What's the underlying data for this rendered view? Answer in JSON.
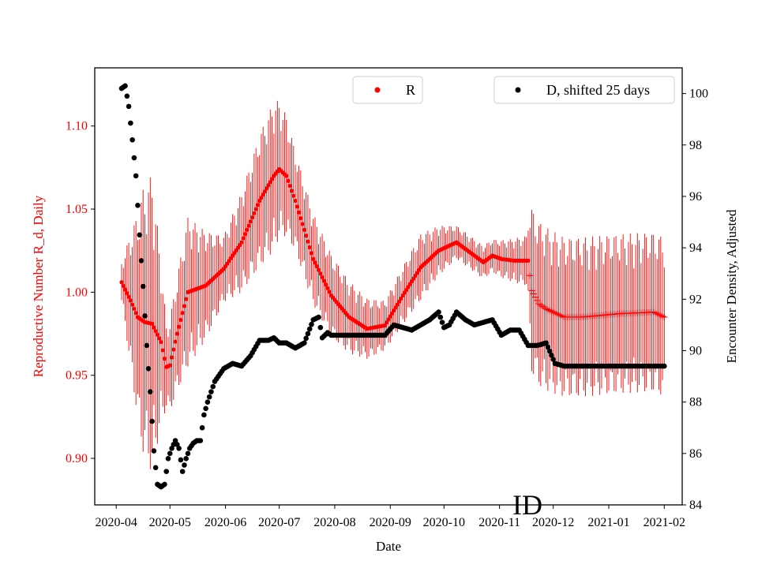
{
  "chart_data": {
    "type": "scatter",
    "xlabel": "Date",
    "ylabel_left": "Reproductive Number R_d, Daily",
    "ylabel_right": "Encounter Density, Adjusted",
    "left_color": "#ff0000",
    "right_color": "#000000",
    "x_ticks": [
      "2020-04",
      "2020-05",
      "2020-06",
      "2020-07",
      "2020-08",
      "2020-09",
      "2020-10",
      "2020-11",
      "2020-12",
      "2021-01",
      "2021-02"
    ],
    "x_tick_days": [
      0,
      30,
      61,
      91,
      122,
      153,
      183,
      214,
      244,
      275,
      306
    ],
    "x_range_days": [
      -12,
      316
    ],
    "y_left": {
      "ticks": [
        0.9,
        0.95,
        1.0,
        1.05,
        1.1
      ],
      "tick_labels": [
        "0.90",
        "0.95",
        "1.00",
        "1.05",
        "1.10"
      ],
      "range": [
        0.872,
        1.135
      ]
    },
    "y_right": {
      "ticks": [
        84,
        86,
        88,
        90,
        92,
        94,
        96,
        98,
        100
      ],
      "tick_labels": [
        "84",
        "86",
        "88",
        "90",
        "92",
        "94",
        "96",
        "98",
        "100"
      ],
      "range": [
        84,
        101
      ]
    },
    "legend": [
      {
        "label": "R",
        "color": "#ff0000",
        "position": "upper-center"
      },
      {
        "label": "D, shifted 25 days",
        "color": "#000000",
        "position": "upper-right"
      }
    ],
    "series_R": {
      "name": "R",
      "color": "#ff0000",
      "estimate_end_day": 230,
      "knots_day": [
        3,
        8,
        12,
        16,
        20,
        25,
        28,
        30,
        34,
        40,
        50,
        60,
        70,
        80,
        88,
        91,
        95,
        100,
        110,
        120,
        130,
        140,
        150,
        160,
        170,
        180,
        190,
        200,
        205,
        210,
        215,
        222,
        230,
        232,
        236,
        240,
        250,
        260,
        280,
        300,
        306
      ],
      "knots_value": [
        1.006,
        0.995,
        0.985,
        0.982,
        0.981,
        0.97,
        0.955,
        0.956,
        0.975,
        1.0,
        1.004,
        1.014,
        1.03,
        1.055,
        1.07,
        1.074,
        1.07,
        1.055,
        1.02,
        0.998,
        0.985,
        0.978,
        0.98,
        0.998,
        1.015,
        1.025,
        1.03,
        1.022,
        1.018,
        1.022,
        1.02,
        1.019,
        1.019,
        1.001,
        0.993,
        0.99,
        0.985,
        0.985,
        0.987,
        0.988,
        0.985
      ],
      "error_knots_day": [
        3,
        15,
        20,
        28,
        40,
        60,
        80,
        88,
        100,
        120,
        150,
        170,
        190,
        210,
        229,
        232,
        250,
        280,
        306
      ],
      "error_knots_halfwidth": [
        0.012,
        0.08,
        0.09,
        0.025,
        0.045,
        0.02,
        0.04,
        0.045,
        0.03,
        0.025,
        0.015,
        0.02,
        0.01,
        0.01,
        0.015,
        0.05,
        0.048,
        0.048,
        0.048
      ]
    },
    "series_D": {
      "name": "D, shifted 25 days",
      "color": "#000000",
      "knots_day": [
        3,
        5,
        7,
        9,
        11,
        13,
        15,
        17,
        19,
        21,
        23,
        25,
        27,
        29,
        31,
        33,
        35,
        37,
        39,
        41,
        43,
        45,
        47,
        49,
        51,
        55,
        60,
        65,
        70,
        75,
        80,
        85,
        88,
        91,
        95,
        100,
        105,
        110,
        113,
        115,
        118,
        120,
        125,
        130,
        140,
        150,
        155,
        160,
        165,
        170,
        175,
        180,
        183,
        186,
        190,
        195,
        200,
        205,
        210,
        215,
        220,
        225,
        230,
        235,
        240,
        245,
        250,
        260,
        280,
        306
      ],
      "knots_value": [
        100.2,
        100.3,
        99.5,
        98.2,
        96.8,
        94.5,
        92.5,
        90.2,
        88.4,
        86.1,
        84.8,
        84.7,
        84.8,
        85.8,
        86.2,
        86.5,
        86.2,
        85.3,
        85.8,
        86.2,
        86.4,
        86.5,
        86.5,
        87.5,
        88.0,
        88.8,
        89.3,
        89.5,
        89.4,
        89.8,
        90.4,
        90.4,
        90.5,
        90.3,
        90.3,
        90.1,
        90.3,
        91.2,
        91.3,
        90.5,
        90.7,
        90.6,
        90.6,
        90.6,
        90.6,
        90.6,
        91.0,
        90.9,
        90.8,
        91.0,
        91.2,
        91.5,
        90.9,
        91.0,
        91.5,
        91.2,
        91.0,
        91.1,
        91.2,
        90.6,
        90.8,
        90.8,
        90.2,
        90.2,
        90.3,
        89.5,
        89.4,
        89.4,
        89.4,
        89.4
      ]
    }
  },
  "watermark": "ID"
}
